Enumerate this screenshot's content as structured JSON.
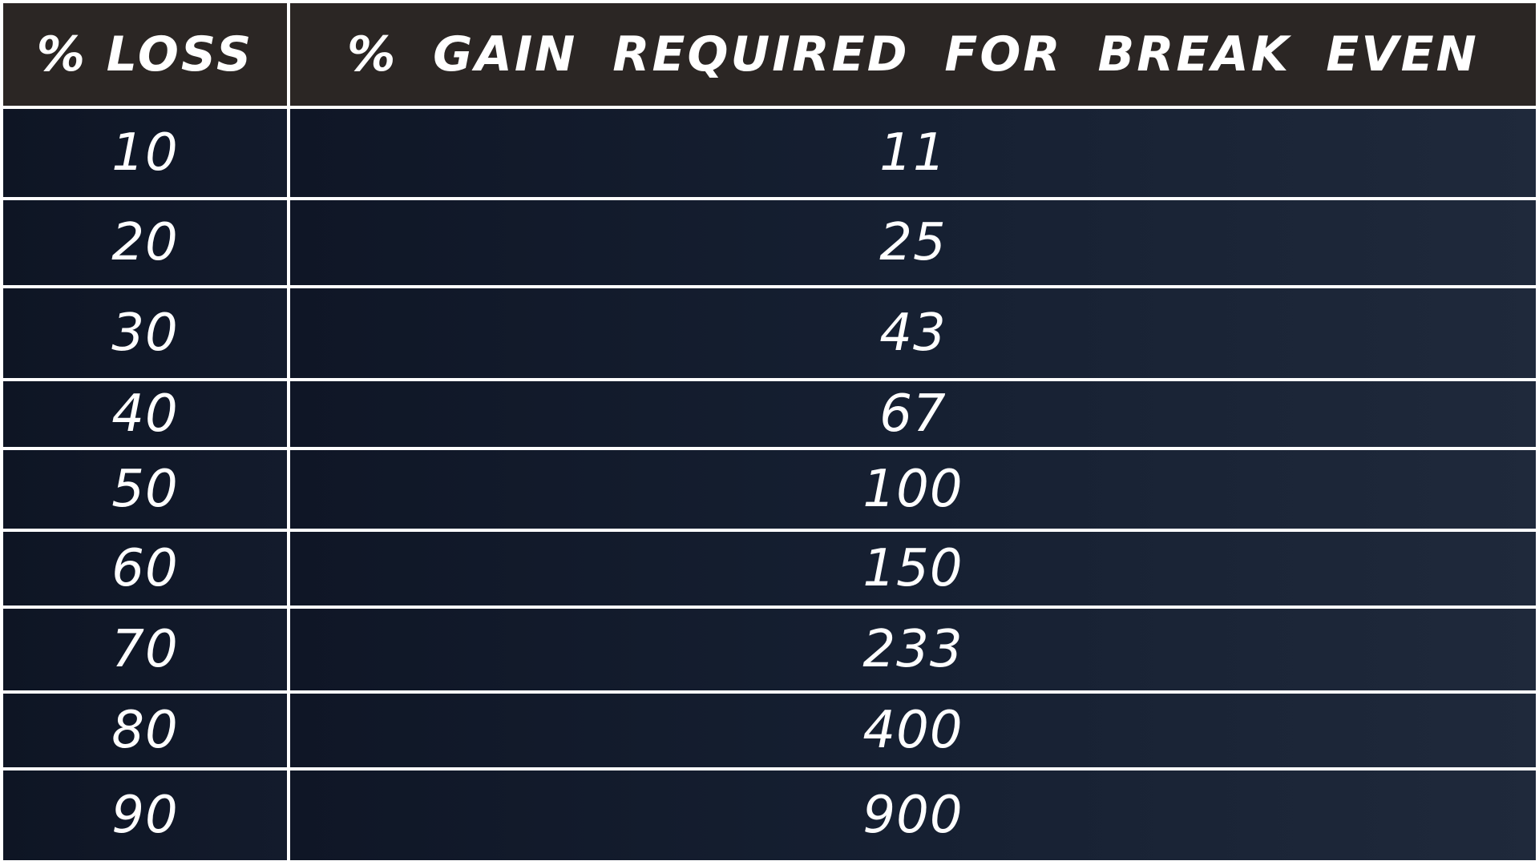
{
  "chart_data": {
    "type": "table",
    "columns": [
      "% LOSS",
      "% GAIN  REQUIRED  FOR  BREAK  EVEN"
    ],
    "rows": [
      {
        "loss": "10",
        "gain": "11"
      },
      {
        "loss": "20",
        "gain": "25"
      },
      {
        "loss": "30",
        "gain": "43"
      },
      {
        "loss": "40",
        "gain": "67"
      },
      {
        "loss": "50",
        "gain": "100"
      },
      {
        "loss": "60",
        "gain": "150"
      },
      {
        "loss": "70",
        "gain": "233"
      },
      {
        "loss": "80",
        "gain": "400"
      },
      {
        "loss": "90",
        "gain": "900"
      }
    ]
  },
  "colors": {
    "header_bg": "#2b2624",
    "body_bg": "#131b2c",
    "grid_lines": "#ffffff",
    "text": "#ffffff"
  }
}
